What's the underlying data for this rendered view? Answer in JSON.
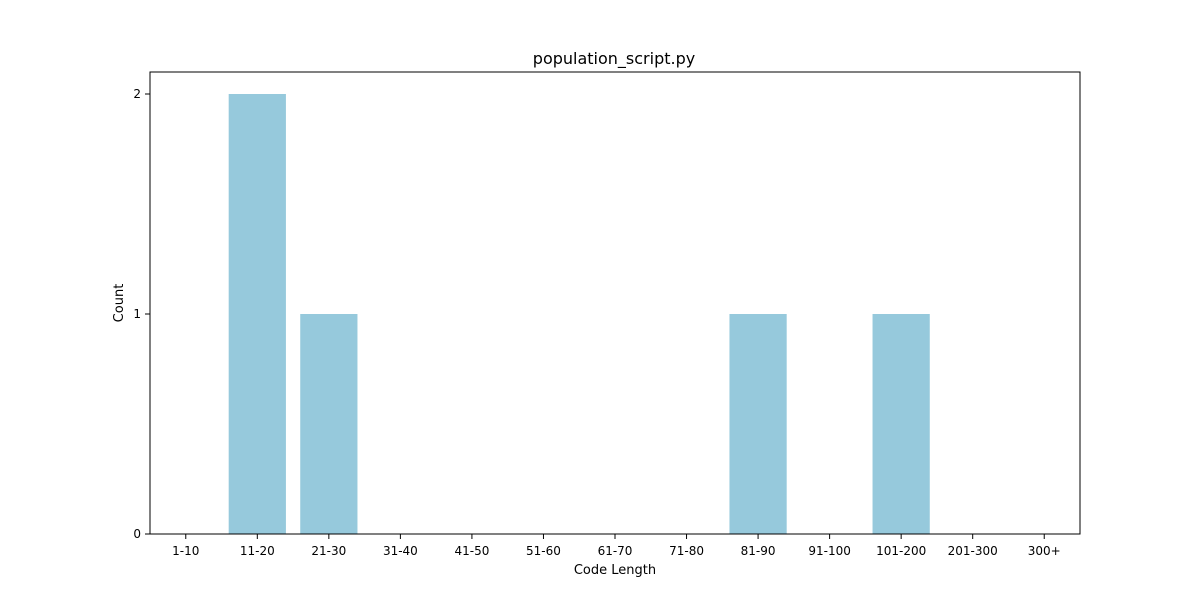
{
  "chart_data": {
    "type": "bar",
    "title": "population_script.py",
    "xlabel": "Code Length",
    "ylabel": "Count",
    "categories": [
      "1-10",
      "11-20",
      "21-30",
      "31-40",
      "41-50",
      "51-60",
      "61-70",
      "71-80",
      "81-90",
      "91-100",
      "101-200",
      "201-300",
      "300+"
    ],
    "values": [
      0,
      2,
      1,
      0,
      0,
      0,
      0,
      0,
      1,
      0,
      1,
      0,
      0
    ],
    "ylim": [
      0,
      2.1
    ],
    "yticks": [
      0,
      1,
      2
    ],
    "grid": false,
    "legend": "none",
    "colors": {
      "bar": "#96c9dc",
      "axis": "#000000"
    }
  }
}
